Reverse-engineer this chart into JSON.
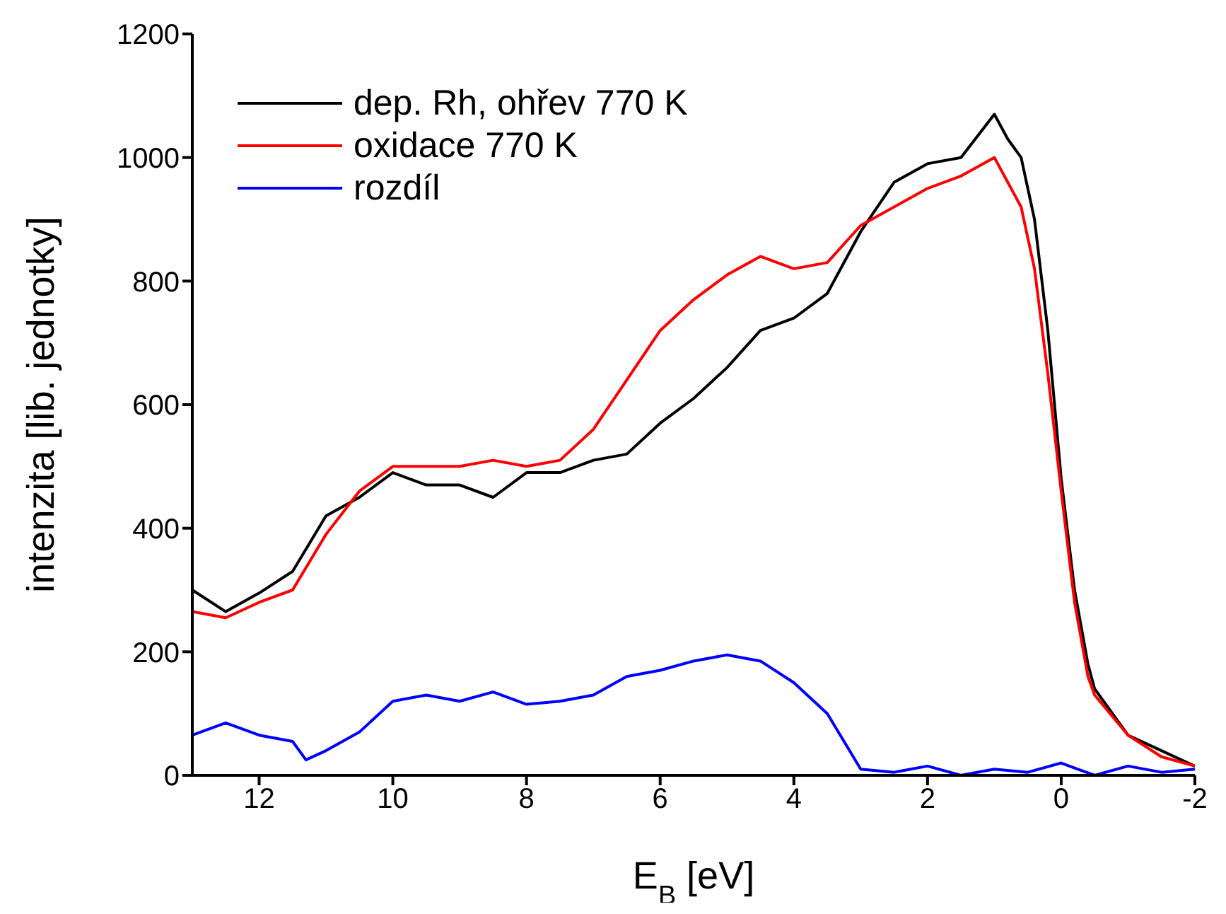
{
  "chart_data": {
    "type": "line",
    "xlabel": "E$_{B}$ [eV]",
    "ylabel": "intenzita [lib. jednotky]",
    "xlim": [
      13,
      -2
    ],
    "xticks": [
      12,
      10,
      8,
      6,
      4,
      2,
      0,
      -2
    ],
    "ylim": [
      0,
      1200
    ],
    "yticks": [
      0,
      200,
      400,
      600,
      800,
      1000,
      1200
    ],
    "legend": "top left",
    "grid": false,
    "marker": "none",
    "line_style": "solid",
    "series": [
      {
        "name": "dep. Rh, ohřev 770 K",
        "color": "#000000",
        "x": [
          13,
          12.5,
          12,
          11.5,
          11,
          10.5,
          10,
          9.5,
          9,
          8.5,
          8,
          7.5,
          7,
          6.5,
          6,
          5.5,
          5,
          4.5,
          4,
          3.5,
          3,
          2.5,
          2,
          1.5,
          1,
          0.8,
          0.6,
          0.4,
          0.2,
          0,
          -0.2,
          -0.4,
          -0.5,
          -1,
          -1.5,
          -2
        ],
        "values": [
          300,
          265,
          295,
          330,
          420,
          450,
          490,
          470,
          470,
          450,
          490,
          490,
          510,
          520,
          570,
          610,
          660,
          720,
          740,
          780,
          880,
          960,
          990,
          1000,
          1070,
          1030,
          1000,
          900,
          720,
          480,
          300,
          180,
          140,
          65,
          40,
          15
        ]
      },
      {
        "name": "oxidace 770 K",
        "color": "#ff0000",
        "x": [
          13,
          12.5,
          12,
          11.5,
          11,
          10.5,
          10,
          9.5,
          9,
          8.5,
          8,
          7.5,
          7,
          6.5,
          6,
          5.5,
          5,
          4.5,
          4,
          3.5,
          3,
          2.5,
          2,
          1.5,
          1,
          0.8,
          0.6,
          0.4,
          0.2,
          0,
          -0.2,
          -0.4,
          -0.5,
          -1,
          -1.5,
          -2
        ],
        "values": [
          265,
          255,
          280,
          300,
          390,
          460,
          500,
          500,
          500,
          510,
          500,
          510,
          560,
          640,
          720,
          770,
          810,
          840,
          820,
          830,
          890,
          920,
          950,
          970,
          1000,
          960,
          920,
          820,
          650,
          460,
          280,
          160,
          130,
          65,
          30,
          15
        ]
      },
      {
        "name": "rozdíl",
        "color": "#0000ff",
        "x": [
          13,
          12.5,
          12,
          11.5,
          11.3,
          11,
          10.5,
          10,
          9.5,
          9,
          8.5,
          8,
          7.5,
          7,
          6.5,
          6,
          5.5,
          5,
          4.5,
          4,
          3.5,
          3,
          2.5,
          2,
          1.5,
          1,
          0.5,
          0,
          -0.5,
          -1,
          -1.5,
          -2
        ],
        "values": [
          65,
          85,
          65,
          55,
          25,
          40,
          70,
          120,
          130,
          120,
          135,
          115,
          120,
          130,
          160,
          170,
          185,
          195,
          185,
          150,
          100,
          10,
          5,
          15,
          0,
          10,
          5,
          20,
          0,
          15,
          5,
          10
        ]
      }
    ]
  }
}
